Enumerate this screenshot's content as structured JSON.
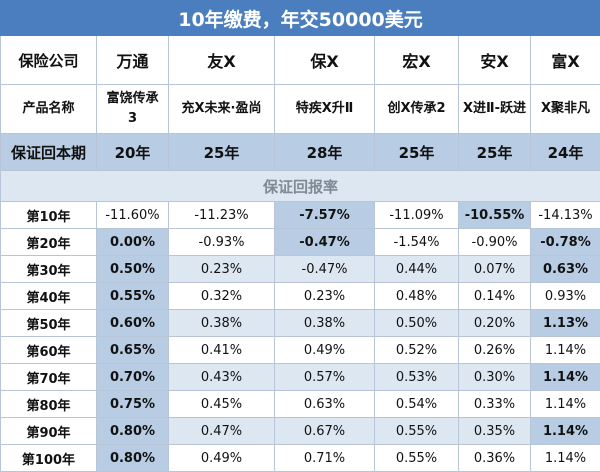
{
  "title": "10年缴费，年交50000美元",
  "row_labels": {
    "company": "保险公司",
    "product": "产品名称",
    "guarantee": "保证回本期"
  },
  "section_title": "保证回报率",
  "columns": [
    {
      "company": "万通",
      "product": "富饶传承3",
      "payback": "20年"
    },
    {
      "company": "友X",
      "product": "充X未来·盈尚",
      "payback": "25年"
    },
    {
      "company": "保X",
      "product": "特疾X升Ⅱ",
      "payback": "28年"
    },
    {
      "company": "宏X",
      "product": "创X传承2",
      "payback": "25年"
    },
    {
      "company": "安X",
      "product": "X进Ⅱ-跃进",
      "payback": "25年"
    },
    {
      "company": "富X",
      "product": "X聚非凡",
      "payback": "24年"
    }
  ],
  "rows": [
    {
      "label": "第10年",
      "values": [
        "-11.60%",
        "-11.23%",
        "-7.57%",
        "-11.09%",
        "-10.55%",
        "-14.13%"
      ]
    },
    {
      "label": "第20年",
      "values": [
        "0.00%",
        "-0.93%",
        "-0.47%",
        "-1.54%",
        "-0.90%",
        "-0.78%"
      ]
    },
    {
      "label": "第30年",
      "values": [
        "0.50%",
        "0.23%",
        "-0.47%",
        "0.44%",
        "0.07%",
        "0.63%"
      ]
    },
    {
      "label": "第40年",
      "values": [
        "0.55%",
        "0.32%",
        "0.23%",
        "0.48%",
        "0.14%",
        "0.93%"
      ]
    },
    {
      "label": "第50年",
      "values": [
        "0.60%",
        "0.38%",
        "0.38%",
        "0.50%",
        "0.20%",
        "1.13%"
      ]
    },
    {
      "label": "第60年",
      "values": [
        "0.65%",
        "0.41%",
        "0.49%",
        "0.52%",
        "0.26%",
        "1.14%"
      ]
    },
    {
      "label": "第70年",
      "values": [
        "0.70%",
        "0.43%",
        "0.57%",
        "0.53%",
        "0.30%",
        "1.14%"
      ]
    },
    {
      "label": "第80年",
      "values": [
        "0.75%",
        "0.45%",
        "0.63%",
        "0.54%",
        "0.33%",
        "1.14%"
      ]
    },
    {
      "label": "第90年",
      "values": [
        "0.80%",
        "0.47%",
        "0.67%",
        "0.55%",
        "0.35%",
        "1.14%"
      ]
    },
    {
      "label": "第100年",
      "values": [
        "0.80%",
        "0.49%",
        "0.71%",
        "0.55%",
        "0.36%",
        "1.14%"
      ]
    }
  ],
  "colors": {
    "title_bg": "#4a7ebf",
    "highlight": "#b8cde4",
    "stripe": "#dde7f2",
    "border": "#b7c5d6"
  }
}
